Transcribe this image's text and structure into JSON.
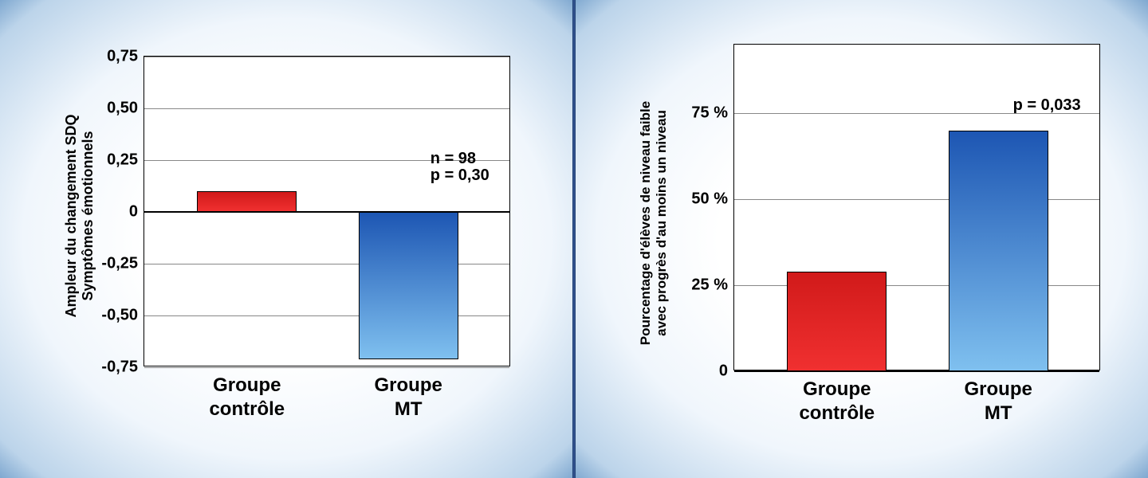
{
  "divider_color": "#1a3a6a",
  "left_chart": {
    "type": "bar",
    "y_axis_title_line1": "Ampleur du changement SDQ",
    "y_axis_title_line2": "Symptômes émotionnels",
    "categories": [
      "Groupe\ncontrôle",
      "Groupe\nMT"
    ],
    "values": [
      0.1,
      -0.71
    ],
    "bar_fill_start": [
      "#d11a1a",
      "#1d56b3"
    ],
    "bar_fill_end": [
      "#f03030",
      "#7fc0ef"
    ],
    "bar_border": "#000000",
    "ymin": -0.75,
    "ymax": 0.75,
    "yticks": [
      -0.75,
      -0.5,
      -0.25,
      0,
      0.25,
      0.5,
      0.75
    ],
    "ytick_labels": [
      "-0,75",
      "-0,50",
      "-0,25",
      "0",
      "0,25",
      "0,50",
      "0,75"
    ],
    "grid_color": "#888888",
    "plot_bg": "#ffffff",
    "annotation1": "n = 98",
    "annotation2": "p = 0,30",
    "label_fontsize": 20,
    "cat_fontsize": 24,
    "title_fontsize": 18
  },
  "right_chart": {
    "type": "bar",
    "y_axis_title_line1": "Pourcentage d'élèves de niveau faible",
    "y_axis_title_line2": "avec progrès d'au moins un niveau",
    "categories": [
      "Groupe\ncontrôle",
      "Groupe\nMT"
    ],
    "values": [
      29,
      70
    ],
    "bar_fill_start": [
      "#d11a1a",
      "#1d56b3"
    ],
    "bar_fill_end": [
      "#f03030",
      "#7fc0ef"
    ],
    "bar_border": "#000000",
    "ymin": 0,
    "ymax": 95,
    "yticks": [
      0,
      25,
      50,
      75
    ],
    "ytick_labels": [
      "0",
      "25 %",
      "50 %",
      "75 %"
    ],
    "grid_color": "#888888",
    "plot_bg": "#ffffff",
    "annotation1": "p = 0,033",
    "label_fontsize": 20,
    "cat_fontsize": 24,
    "title_fontsize": 17
  }
}
